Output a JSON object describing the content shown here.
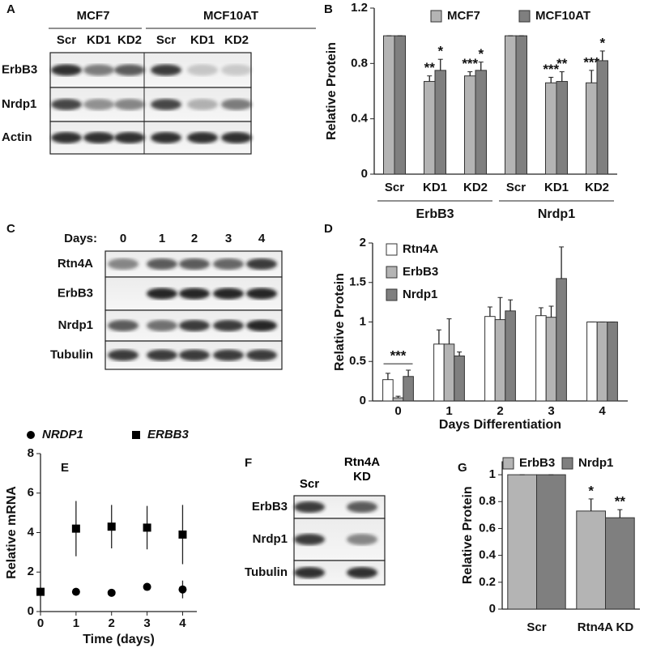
{
  "chart_data": [
    {
      "type": "bar",
      "panel": "B",
      "ylabel": "Relative Protein",
      "categories": [
        "Scr",
        "KD1",
        "KD2",
        "Scr",
        "KD1",
        "KD2"
      ],
      "groups": [
        "ErbB3",
        "Nrdp1"
      ],
      "series": [
        {
          "name": "MCF7",
          "color": "#b4b4b4",
          "values": [
            1,
            0.67,
            0.71,
            1,
            0.66,
            0.66
          ],
          "errors": [
            0,
            0.04,
            0.03,
            0,
            0.04,
            0.09
          ],
          "annotations": [
            null,
            "**",
            "***",
            null,
            "***",
            "***"
          ]
        },
        {
          "name": "MCF10AT",
          "color": "#7f7f7f",
          "values": [
            1,
            0.75,
            0.75,
            1,
            0.67,
            0.82
          ],
          "errors": [
            0,
            0.08,
            0.06,
            0,
            0.07,
            0.07
          ],
          "annotations": [
            null,
            "*",
            "*",
            null,
            "**",
            "*"
          ]
        }
      ],
      "ylim": [
        0,
        1.2
      ],
      "yticks": [
        0,
        0.4,
        0.8,
        1.2
      ]
    },
    {
      "type": "bar",
      "panel": "D",
      "ylabel": "Relative Protein",
      "xlabel": "Days Differentiation",
      "annotation": "***",
      "categories": [
        "0",
        "1",
        "2",
        "3",
        "4"
      ],
      "series": [
        {
          "name": "Rtn4A",
          "color": "#ffffff",
          "values": [
            0.27,
            0.72,
            1.07,
            1.08,
            1
          ],
          "errors": [
            0.08,
            0.18,
            0.12,
            0.1,
            0
          ]
        },
        {
          "name": "ErbB3",
          "color": "#b4b4b4",
          "values": [
            0.04,
            0.72,
            1.03,
            1.06,
            1
          ],
          "errors": [
            0.02,
            0.32,
            0.28,
            0.14,
            0
          ]
        },
        {
          "name": "Nrdp1",
          "color": "#7f7f7f",
          "values": [
            0.31,
            0.57,
            1.14,
            1.55,
            1
          ],
          "errors": [
            0.08,
            0.05,
            0.14,
            0.4,
            0
          ]
        }
      ],
      "ylim": [
        0,
        2
      ],
      "yticks": [
        0,
        0.5,
        1,
        1.5,
        2
      ]
    },
    {
      "type": "scatter",
      "panel": "E",
      "ylabel": "Relative mRNA",
      "xlabel": "Time (days)",
      "x": [
        0,
        1,
        2,
        3,
        4
      ],
      "series": [
        {
          "name": "NRDP1",
          "color": "#000000",
          "marker": "circle",
          "values": [
            1,
            1,
            0.95,
            1.25,
            1.12
          ],
          "errors": [
            0,
            0.1,
            0.1,
            0.1,
            0.45
          ]
        },
        {
          "name": "ERBB3",
          "color": "#000000",
          "marker": "square",
          "values": [
            1,
            4.2,
            4.3,
            4.25,
            3.9
          ],
          "errors": [
            0,
            1.4,
            1.1,
            1.1,
            1.5
          ]
        }
      ],
      "xlim": [
        0,
        4.4
      ],
      "xticks": [
        0,
        1,
        2,
        3,
        4
      ],
      "ylim": [
        0,
        8
      ],
      "yticks": [
        0,
        2,
        4,
        6,
        8
      ]
    },
    {
      "type": "bar",
      "panel": "G",
      "ylabel": "Relative Protein",
      "categories": [
        "Scr",
        "Rtn4A KD"
      ],
      "series": [
        {
          "name": "ErbB3",
          "color": "#b4b4b4",
          "values": [
            1,
            0.73
          ],
          "errors": [
            0,
            0.09
          ],
          "annotations": [
            null,
            "*"
          ]
        },
        {
          "name": "Nrdp1",
          "color": "#7f7f7f",
          "values": [
            1,
            0.68
          ],
          "errors": [
            0,
            0.06
          ],
          "annotations": [
            null,
            "**"
          ]
        }
      ],
      "ylim": [
        0,
        1.1
      ],
      "yticks": [
        0,
        0.2,
        0.4,
        0.6,
        0.8,
        1
      ]
    }
  ],
  "blots": [
    {
      "panel": "A",
      "groups": [
        "MCF7",
        "MCF10AT"
      ],
      "lanes": [
        "Scr",
        "KD1",
        "KD2",
        "Scr",
        "KD1",
        "KD2"
      ],
      "rows": [
        "ErbB3",
        "Nrdp1",
        "Actin"
      ]
    },
    {
      "panel": "C",
      "lane_title": "Days:",
      "lanes": [
        "0",
        "1",
        "2",
        "3",
        "4"
      ],
      "rows": [
        "Rtn4A",
        "ErbB3",
        "Nrdp1",
        "Tubulin"
      ]
    },
    {
      "panel": "F",
      "lanes": [
        "Scr",
        "Rtn4A KD"
      ],
      "rows": [
        "ErbB3",
        "Nrdp1",
        "Tubulin"
      ]
    }
  ]
}
